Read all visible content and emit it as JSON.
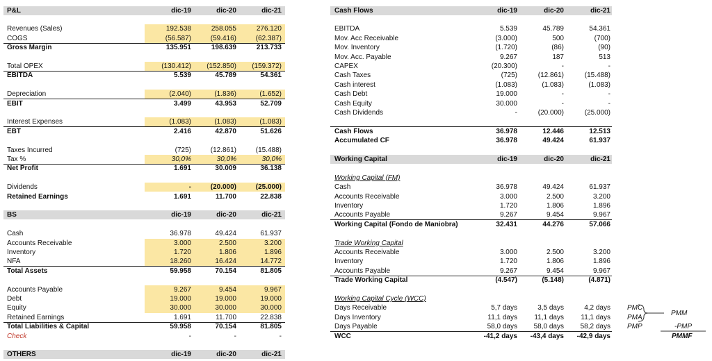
{
  "pl": {
    "title": "P&L",
    "columns": [
      "dic-19",
      "dic-20",
      "dic-21"
    ],
    "rows": [
      {
        "label": "Revenues (Sales)",
        "values": [
          "192.538",
          "258.055",
          "276.120"
        ]
      },
      {
        "label": "COGS",
        "values": [
          "(56.587)",
          "(59.416)",
          "(62.387)"
        ]
      },
      {
        "label": "Gross Margin",
        "values": [
          "135.951",
          "198.639",
          "213.733"
        ]
      },
      {
        "label": "Total OPEX",
        "values": [
          "(130.412)",
          "(152.850)",
          "(159.372)"
        ]
      },
      {
        "label": "EBITDA",
        "values": [
          "5.539",
          "45.789",
          "54.361"
        ]
      },
      {
        "label": "Depreciation",
        "values": [
          "(2.040)",
          "(1.836)",
          "(1.652)"
        ]
      },
      {
        "label": "EBIT",
        "values": [
          "3.499",
          "43.953",
          "52.709"
        ]
      },
      {
        "label": "Interest Expenses",
        "values": [
          "(1.083)",
          "(1.083)",
          "(1.083)"
        ]
      },
      {
        "label": "EBT",
        "values": [
          "2.416",
          "42.870",
          "51.626"
        ]
      },
      {
        "label": "Taxes Incurred",
        "values": [
          "(725)",
          "(12.861)",
          "(15.488)"
        ]
      },
      {
        "label": "Tax %",
        "values": [
          "30,0%",
          "30,0%",
          "30,0%"
        ]
      },
      {
        "label": "Net Profit",
        "values": [
          "1.691",
          "30.009",
          "36.138"
        ]
      },
      {
        "label": "Dividends",
        "values": [
          "-",
          "(20.000)",
          "(25.000)"
        ]
      },
      {
        "label": "Retained Earnings",
        "values": [
          "1.691",
          "11.700",
          "22.838"
        ]
      }
    ]
  },
  "bs": {
    "title": "BS",
    "columns": [
      "dic-19",
      "dic-20",
      "dic-21"
    ],
    "rows": [
      {
        "label": "Cash",
        "values": [
          "36.978",
          "49.424",
          "61.937"
        ]
      },
      {
        "label": "Accounts Receivable",
        "values": [
          "3.000",
          "2.500",
          "3.200"
        ]
      },
      {
        "label": "Inventory",
        "values": [
          "1.720",
          "1.806",
          "1.896"
        ]
      },
      {
        "label": "NFA",
        "values": [
          "18.260",
          "16.424",
          "14.772"
        ]
      },
      {
        "label": "Total Assets",
        "values": [
          "59.958",
          "70.154",
          "81.805"
        ]
      },
      {
        "label": "Accounts Payable",
        "values": [
          "9.267",
          "9.454",
          "9.967"
        ]
      },
      {
        "label": "Debt",
        "values": [
          "19.000",
          "19.000",
          "19.000"
        ]
      },
      {
        "label": "Equity",
        "values": [
          "30.000",
          "30.000",
          "30.000"
        ]
      },
      {
        "label": "Retained Earnings",
        "values": [
          "1.691",
          "11.700",
          "22.838"
        ]
      },
      {
        "label": "Total Liabilities & Capital",
        "values": [
          "59.958",
          "70.154",
          "81.805"
        ]
      },
      {
        "label": "Check",
        "values": [
          "-",
          "-",
          "-"
        ]
      }
    ]
  },
  "others": {
    "title": "OTHERS",
    "columns": [
      "dic-19",
      "dic-20",
      "dic-21"
    ],
    "rows": []
  },
  "cash_flows": {
    "title": "Cash Flows",
    "columns": [
      "dic-19",
      "dic-20",
      "dic-21"
    ],
    "rows": [
      {
        "label": "EBITDA",
        "values": [
          "5.539",
          "45.789",
          "54.361"
        ]
      },
      {
        "label": "Mov. Acc Receivable",
        "values": [
          "(3.000)",
          "500",
          "(700)"
        ]
      },
      {
        "label": "Mov. Inventory",
        "values": [
          "(1.720)",
          "(86)",
          "(90)"
        ]
      },
      {
        "label": "Mov. Acc. Payable",
        "values": [
          "9.267",
          "187",
          "513"
        ]
      },
      {
        "label": "CAPEX",
        "values": [
          "(20.300)",
          "-",
          "-"
        ]
      },
      {
        "label": "Cash Taxes",
        "values": [
          "(725)",
          "(12.861)",
          "(15.488)"
        ]
      },
      {
        "label": "Cash interest",
        "values": [
          "(1.083)",
          "(1.083)",
          "(1.083)"
        ]
      },
      {
        "label": "Cash Debt",
        "values": [
          "19.000",
          "-",
          "-"
        ]
      },
      {
        "label": "Cash Equity",
        "values": [
          "30.000",
          "-",
          "-"
        ]
      },
      {
        "label": "Cash Dividends",
        "values": [
          "-",
          "(20.000)",
          "(25.000)"
        ]
      },
      {
        "label": "Cash Flows",
        "values": [
          "36.978",
          "12.446",
          "12.513"
        ]
      },
      {
        "label": "Accumulated CF",
        "values": [
          "36.978",
          "49.424",
          "61.937"
        ]
      }
    ]
  },
  "working_capital": {
    "title": "Working Capital",
    "columns": [
      "dic-19",
      "dic-20",
      "dic-21"
    ],
    "groups": [
      {
        "title": "Working Capital (FM)",
        "rows": [
          {
            "label": "Cash",
            "values": [
              "36.978",
              "49.424",
              "61.937"
            ]
          },
          {
            "label": "Accounts Receivable",
            "values": [
              "3.000",
              "2.500",
              "3.200"
            ]
          },
          {
            "label": "Inventory",
            "values": [
              "1.720",
              "1.806",
              "1.896"
            ]
          },
          {
            "label": "Accounts Payable",
            "values": [
              "9.267",
              "9.454",
              "9.967"
            ]
          },
          {
            "label": "Working Capital (Fondo de Maniobra)",
            "values": [
              "32.431",
              "44.276",
              "57.066"
            ]
          }
        ]
      },
      {
        "title": "Trade Working Capital",
        "rows": [
          {
            "label": "Accounts Receivable",
            "values": [
              "3.000",
              "2.500",
              "3.200"
            ]
          },
          {
            "label": "Inventory",
            "values": [
              "1.720",
              "1.806",
              "1.896"
            ]
          },
          {
            "label": "Accounts Payable",
            "values": [
              "9.267",
              "9.454",
              "9.967"
            ]
          },
          {
            "label": "Trade Working Capital",
            "values": [
              "(4.547)",
              "(5.148)",
              "(4.871)"
            ]
          }
        ]
      },
      {
        "title": "Working Capital Cycle (WCC)",
        "rows": [
          {
            "label": "Days Receivable",
            "values": [
              "5,7 days",
              "3,5 days",
              "4,2 days"
            ]
          },
          {
            "label": "Days Inventory",
            "values": [
              "11,1 days",
              "11,1 days",
              "11,1 days"
            ]
          },
          {
            "label": "Days Payable",
            "values": [
              "58,0 days",
              "58,0 days",
              "58,2 days"
            ]
          },
          {
            "label": "WCC",
            "values": [
              "-41,2 days",
              "-43,4 days",
              "-42,9 days"
            ]
          }
        ]
      }
    ]
  },
  "annotations": {
    "cycle_labels": [
      "PMC",
      "PMA",
      "PMP"
    ],
    "pmm": "PMM",
    "minus_pmp": "-PMP",
    "pmmf": "PMMF"
  }
}
